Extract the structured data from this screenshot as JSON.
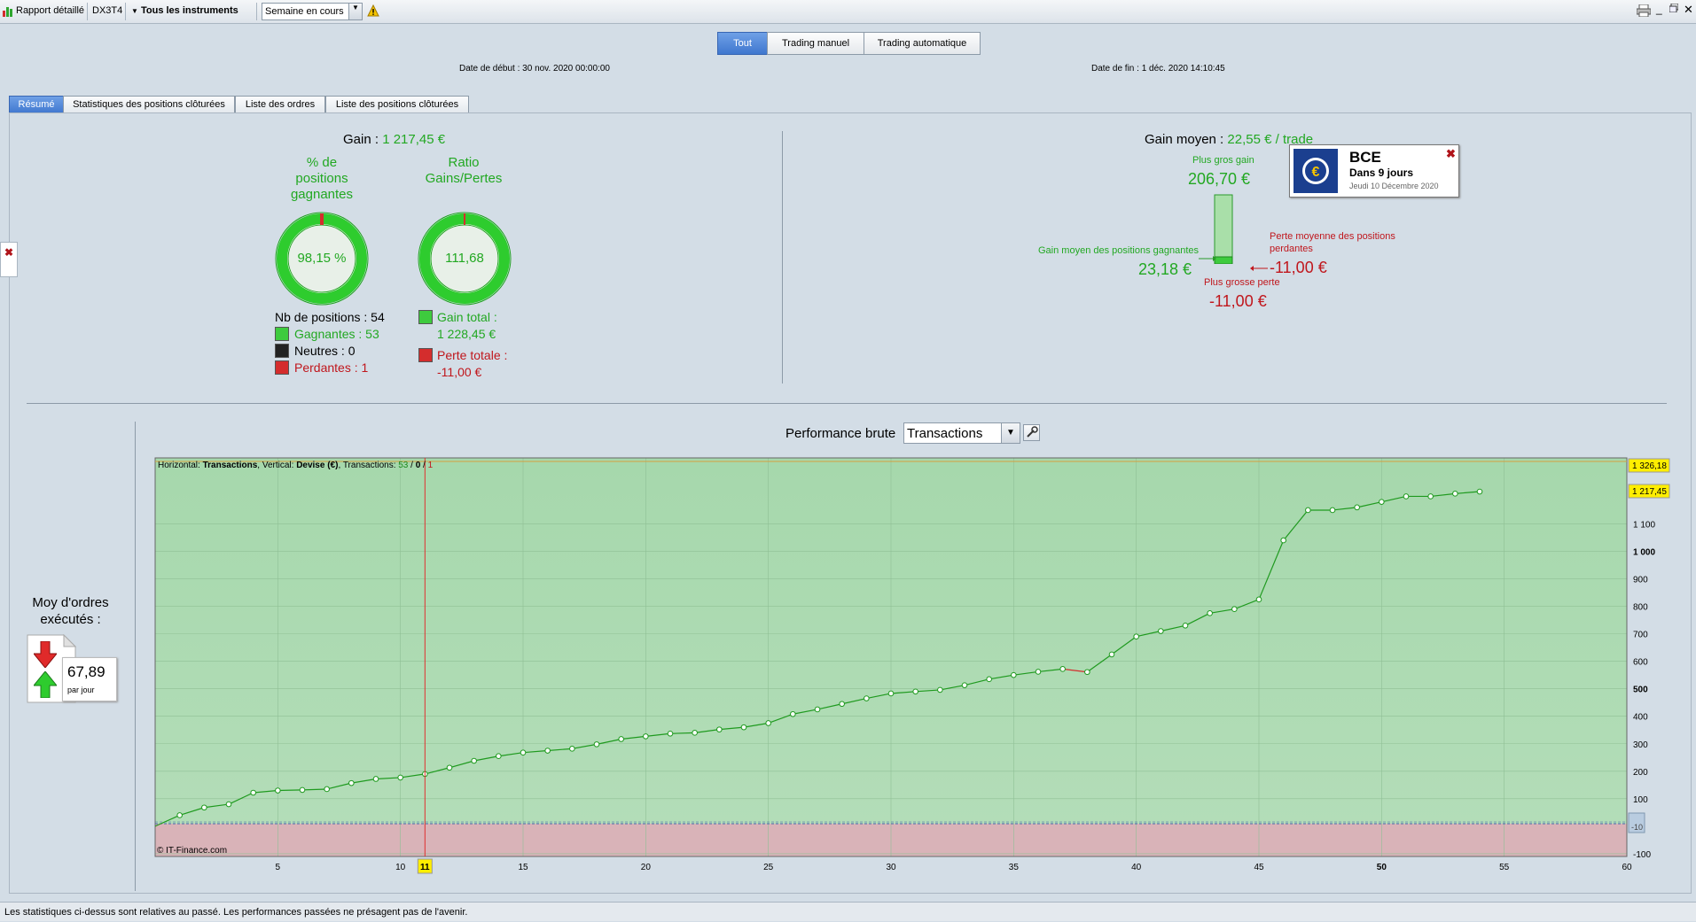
{
  "toolbar": {
    "report_label": "Rapport détaillé",
    "account": "DX3T4",
    "instruments": "Tous les instruments",
    "period": "Semaine en cours"
  },
  "filters": {
    "tabs": [
      "Tout",
      "Trading manuel",
      "Trading automatique"
    ],
    "active": "Tout"
  },
  "dates": {
    "start": "Date de début :  30 nov. 2020 00:00:00",
    "end": "Date de fin :  1 déc. 2020 14:10:45"
  },
  "tabs": [
    "Résumé",
    "Statistiques des positions clôturées",
    "Liste des ordres",
    "Liste des positions clôturées"
  ],
  "summary": {
    "gain_label": "Gain : ",
    "gain_value": "1 217,45 €",
    "pct_title": [
      "% de",
      "positions",
      "gagnantes"
    ],
    "pct_value": "98,15 %",
    "ratio_title": [
      "Ratio",
      "Gains/Pertes"
    ],
    "ratio_value": "111,68",
    "nb_positions": "Nb de positions : 54",
    "gagnantes": "Gagnantes : 53",
    "neutres": "Neutres : 0",
    "perdantes": "Perdantes : 1",
    "gain_total_label": "Gain total :",
    "gain_total_value": "1 228,45 €",
    "perte_totale_label": "Perte totale :",
    "perte_totale_value": "-11,00 €",
    "gain_moyen_label": "Gain moyen : ",
    "gain_moyen_value": "22,55 € / trade",
    "plus_gros_gain_label": "Plus gros gain",
    "plus_gros_gain_value": "206,70 €",
    "gain_moyen_gagnantes_label": "Gain moyen des positions gagnantes",
    "gain_moyen_gagnantes_value": "23,18 €",
    "perte_moyenne_label": [
      "Perte moyenne des positions",
      "perdantes"
    ],
    "perte_moyenne_value": "-11,00 €",
    "plus_grosse_perte_label": "Plus grosse perte",
    "plus_grosse_perte_value": "-11,00 €"
  },
  "popup": {
    "title": "BCE",
    "subtitle": "Dans 9 jours",
    "date": "Jeudi 10 Décembre 2020"
  },
  "orders": {
    "label": [
      "Moy d'ordres",
      "exécutés :"
    ],
    "value": "67,89",
    "unit": "par jour"
  },
  "chart_header": {
    "title": "Performance brute",
    "select": "Transactions"
  },
  "chart_data": {
    "type": "line",
    "info": {
      "prefix": "Horizontal: ",
      "h": "Transactions",
      "mid": ", Vertical: ",
      "v": "Devise (€)",
      "mid2": ", Transactions: ",
      "win": "53",
      "neutral": "0",
      "loss": "1"
    },
    "copyright": "© IT-Finance.com",
    "x": [
      0,
      1,
      2,
      3,
      4,
      5,
      6,
      7,
      8,
      9,
      10,
      11,
      12,
      13,
      14,
      15,
      16,
      17,
      18,
      19,
      20,
      21,
      22,
      23,
      24,
      25,
      26,
      27,
      28,
      29,
      30,
      31,
      32,
      33,
      34,
      35,
      36,
      37,
      38,
      39,
      40,
      41,
      42,
      43,
      44,
      45,
      46,
      47,
      48,
      49,
      50,
      51,
      52,
      53,
      54
    ],
    "values": [
      0,
      40,
      68,
      80,
      122,
      130,
      132,
      135,
      157,
      172,
      177,
      190,
      213,
      238,
      255,
      268,
      275,
      282,
      298,
      317,
      327,
      337,
      340,
      352,
      360,
      375,
      408,
      425,
      445,
      465,
      483,
      490,
      496,
      513,
      535,
      550,
      562,
      572,
      561,
      625,
      690,
      710,
      730,
      775,
      790,
      825,
      1040,
      1150,
      1150,
      1160,
      1180,
      1200,
      1200,
      1210,
      1217.45
    ],
    "losing_index": 38,
    "xlim": [
      0,
      60
    ],
    "ylim": [
      -110,
      1340
    ],
    "x_ticks": [
      "5",
      "10",
      "15",
      "20",
      "25",
      "30",
      "35",
      "40",
      "45",
      "50",
      "55",
      "60"
    ],
    "y_ticks": [
      "1 100",
      "1 000",
      "900",
      "800",
      "700",
      "600",
      "500",
      "400",
      "300",
      "200",
      "100",
      "-100"
    ],
    "badges": {
      "max": "1 326,18",
      "last": "1 217,45",
      "min": "-10"
    },
    "cursor_label": "11",
    "cursor_x": 11
  },
  "footer": "Les statistiques ci-dessus sont relatives au passé. Les performances passées ne présagent pas de l'avenir."
}
